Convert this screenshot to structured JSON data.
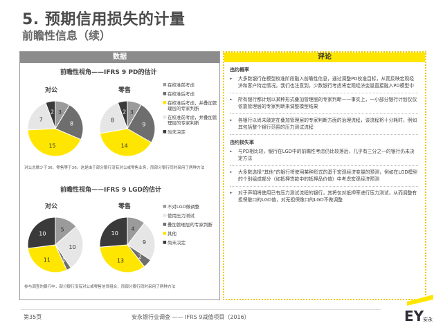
{
  "header": {
    "title": "5. 预期信用损失的计量",
    "subtitle": "前瞻性信息（续）"
  },
  "left_panel": {
    "header": "数据",
    "pd_section": {
      "title": "前瞻性视角——IFRS 9 PD的估计",
      "labels": [
        "对公",
        "零售"
      ],
      "legend": [
        "在校准前考虑",
        "在校准后考虑",
        "在校准后考虑，并叠加管理层的专家判断",
        "在校准前考虑，并叠加管理层的专家判断",
        "尚未决定"
      ],
      "note": "对公总数少于36、零售等于36。这是由于部分银行没有对公或零售业务，而部分银行同时采用了两种方法"
    },
    "lgd_section": {
      "title": "前瞻性视角——IFRS 9 LGD的估计",
      "labels": [
        "对公",
        "零售"
      ],
      "legend": [
        "不对LGD做调整",
        "使用压力测试",
        "叠加管理层的专家判断",
        "其他",
        "尚未决定"
      ],
      "note": "参与调查的银行中，部分银行没有对公或零售信贷组合，而部分银行同时采用了两种方法"
    }
  },
  "chart_data": [
    {
      "type": "pie",
      "title": "对公",
      "labels": [
        "在校准前考虑",
        "在校准后考虑",
        "在校准后考虑，并叠加管理层的专家判断",
        "在校准前考虑，并叠加管理层的专家判断",
        "尚未决定"
      ],
      "values": [
        3,
        8,
        15,
        7,
        2
      ],
      "colors": [
        "#9b9b9b",
        "#6e6e6e",
        "#ffe600",
        "#e6e6e6",
        "#3a3a3a"
      ]
    },
    {
      "type": "pie",
      "title": "零售",
      "labels": [
        "在校准前考虑",
        "在校准后考虑",
        "在校准后考虑，并叠加管理层的专家判断",
        "在校准前考虑，并叠加管理层的专家判断",
        "尚未决定"
      ],
      "values": [
        3,
        9,
        14,
        8,
        2
      ],
      "colors": [
        "#9b9b9b",
        "#6e6e6e",
        "#ffe600",
        "#e6e6e6",
        "#3a3a3a"
      ]
    },
    {
      "type": "pie",
      "title": "对公",
      "labels": [
        "不对LGD做调整",
        "使用压力测试",
        "叠加管理层的专家判断",
        "其他",
        "尚未决定"
      ],
      "values": [
        5,
        10,
        1,
        11,
        10
      ],
      "colors": [
        "#9b9b9b",
        "#e6e6e6",
        "#6e6e6e",
        "#ffe600",
        "#3a3a3a"
      ]
    },
    {
      "type": "pie",
      "title": "零售",
      "labels": [
        "不对LGD做调整",
        "使用压力测试",
        "叠加管理层的专家判断",
        "其他",
        "尚未决定"
      ],
      "values": [
        4,
        9,
        2,
        13,
        10
      ],
      "colors": [
        "#9b9b9b",
        "#e6e6e6",
        "#6e6e6e",
        "#ffe600",
        "#3a3a3a"
      ]
    }
  ],
  "right_panel": {
    "header": "评论",
    "pd_heading": "违约概率",
    "pd_bullets": [
      "大多数银行在模型校准阶段融入前瞻性信息，通过调整PD校准目标，从而反映宏观经济和客户特定情况。我们也注意到，少数银行考虑将宏观经济变量直接融入PD模型中",
      "所有银行都计划以某种形式叠加管理层的专家判断——事实上，一小部分银行计划仅仅依靠管理层的专家判断来调整模型结果",
      "各银行以尚未敲定在叠加管理层的专家判断方面的治理流程，该流程将十分耗时，例如其包括整个银行范围的压力测试流程"
    ],
    "lgd_heading": "违约损失率",
    "lgd_bullets": [
      "与PD相比较，银行在LGD中的前瞻性考虑仍比较落后，几乎有三分之一的银行仍未决定方法",
      "大多数选择“其他”的银行将使用某种形式的基于宏观经济变量的预测，例如在LGD模型的个别组成部分（如抵押贷款中的抵押品价值）中考虑宏观经济预测",
      "对于声明将使用已有压力测试流程的银行，其将仅对抵押率进行压力测试，从而调整有担保敞口的LGD值，对无担保敞口的LGD不做调整"
    ]
  },
  "footer": {
    "page": "第35页",
    "center": "安永银行业调查 —— IFRS 9减值项目（2016）",
    "logo_text": "EY",
    "logo_sub": "安永"
  }
}
